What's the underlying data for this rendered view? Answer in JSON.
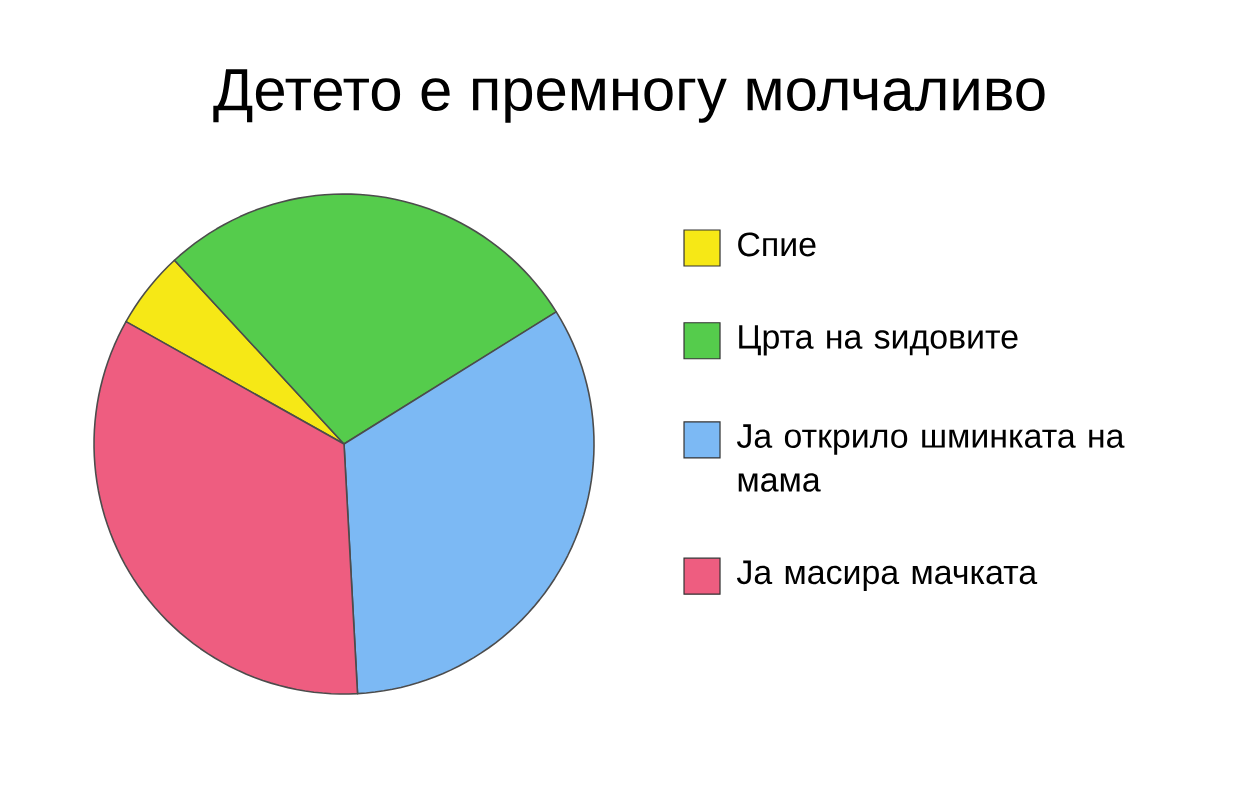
{
  "chart_data": {
    "type": "pie",
    "title": "Детето е премногу молчаливо",
    "categories": [
      "Спие",
      "Црта на ѕидовите",
      "Ја открило шминката на мама",
      "Ја масира мачката"
    ],
    "values": [
      5,
      28,
      33,
      34
    ],
    "colors": [
      "#f6e816",
      "#55cc4c",
      "#7cb9f4",
      "#ee5d80"
    ],
    "legend": "right"
  }
}
